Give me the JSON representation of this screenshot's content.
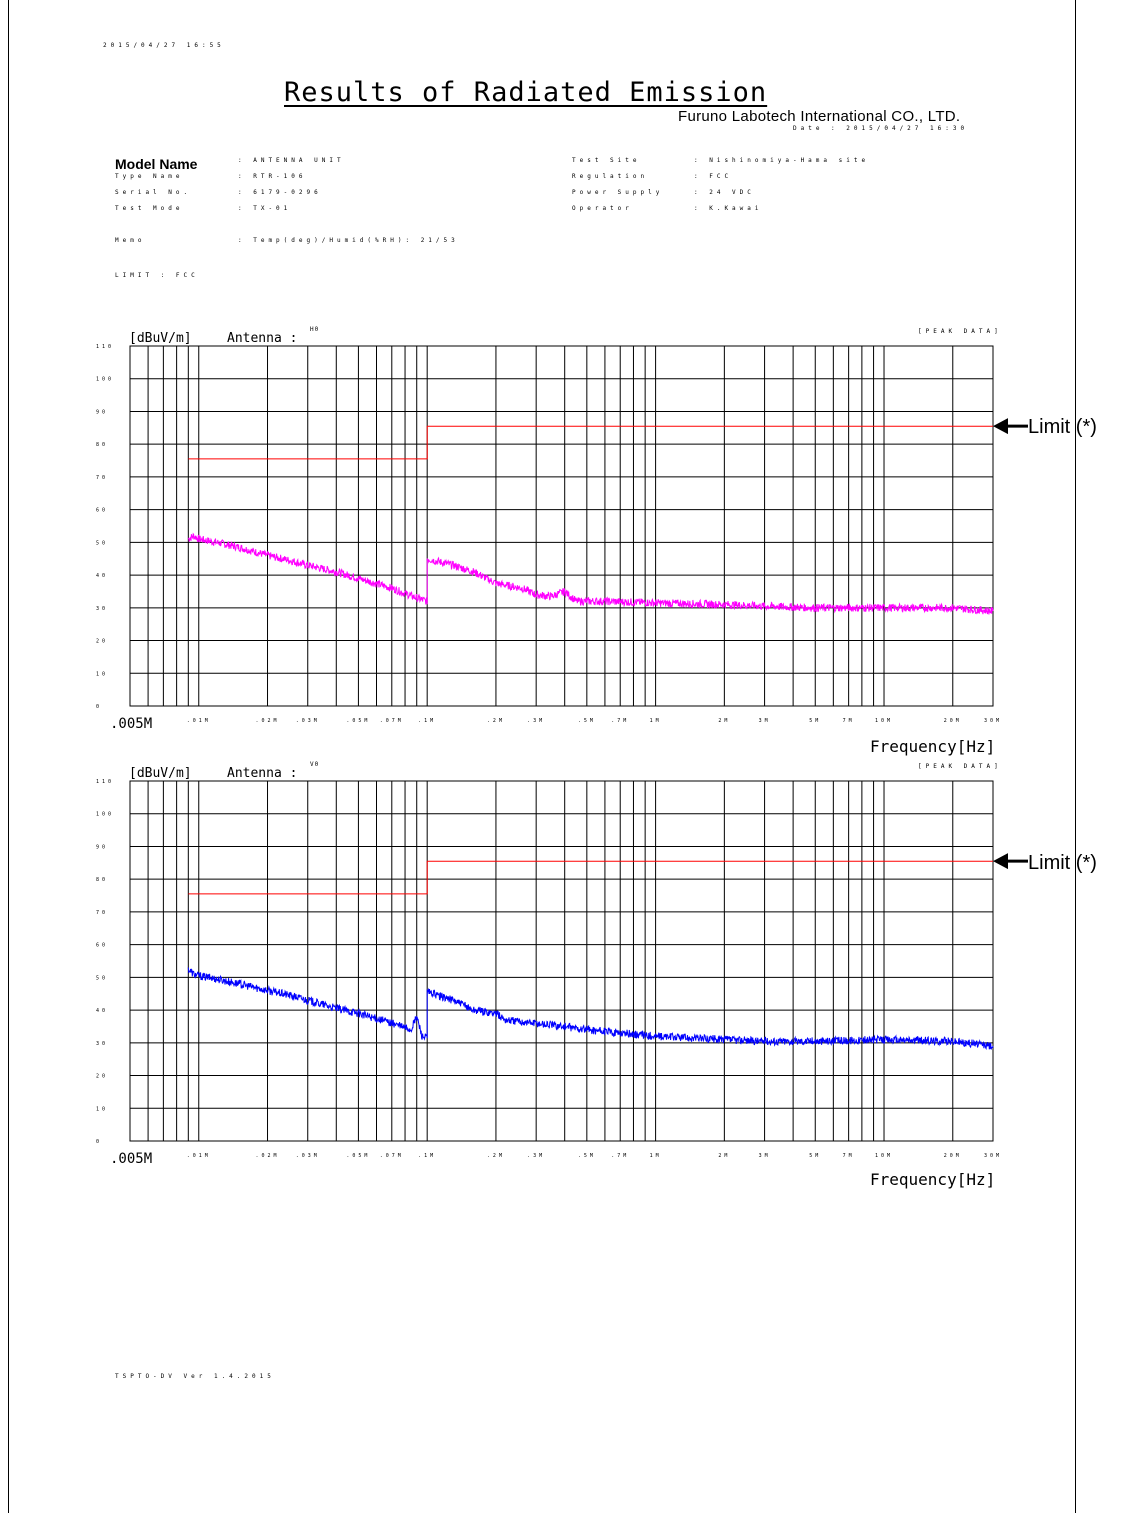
{
  "header": {
    "print_timestamp": "2015/04/27 16:55",
    "title": "Results of Radiated Emission",
    "company": "Furuno Labotech International CO., LTD.",
    "date_line": "Date : 2015/04/27 16:30"
  },
  "info_left": {
    "model_name_label": "Model Name",
    "model_name_value": ": ANTENNA UNIT",
    "type_name_label": "Type Name",
    "type_name_value": ": RTR-106",
    "serial_label": "Serial No.",
    "serial_value": ": 6179-0296",
    "test_mode_label": "Test Mode",
    "test_mode_value": ": TX-01"
  },
  "info_right": {
    "test_site_label": "Test Site",
    "test_site_value": ": Nishinomiya-Hama site",
    "regulation_label": "Regulation",
    "regulation_value": ": FCC",
    "power_supply_label": "Power Supply",
    "power_supply_value": ": 24 VDC",
    "operator_label": "Operator",
    "operator_value": ": K.Kawai"
  },
  "memo": {
    "label": "Memo",
    "value": ": Temp(deg)/Humid(%RH): 21/53"
  },
  "limit_line": "LIMIT : FCC",
  "footer": "TSPTO-DV Ver 1.4.2015",
  "chart_data": [
    {
      "type": "line",
      "ylabel": "[dBuV/m]",
      "antenna_label": "Antenna :",
      "antenna_value": "H0",
      "peak_label": "[PEAK DATA]",
      "xlabel": "Frequency[Hz]",
      "x_start_label": ".005M",
      "x_scale": "log",
      "xlim_hz": [
        5000,
        30000000
      ],
      "ylim": [
        0,
        110
      ],
      "yticks": [
        0,
        10,
        20,
        30,
        40,
        50,
        60,
        70,
        80,
        90,
        100,
        110
      ],
      "ytick_labels": [
        "0",
        "10",
        "20",
        "30",
        "40",
        "50",
        "60",
        "70",
        "80",
        "90",
        "100",
        "110"
      ],
      "xtick_labels": [
        ".01M",
        ".02M",
        ".03M",
        ".05M",
        ".07M",
        ".1M",
        ".2M",
        ".3M",
        ".5M",
        ".7M",
        "1M",
        "2M",
        "3M",
        "5M",
        "7M",
        "10M",
        "20M",
        "30M"
      ],
      "xtick_hz": [
        10000,
        20000,
        30000,
        50000,
        70000,
        100000,
        200000,
        300000,
        500000,
        700000,
        1000000,
        2000000,
        3000000,
        5000000,
        7000000,
        10000000,
        20000000,
        30000000
      ],
      "annotation": "Limit (*)",
      "series": [
        {
          "color": "#ff00ff",
          "points": [
            [
              9000,
              51
            ],
            [
              9500,
              52
            ],
            [
              10000,
              51
            ],
            [
              12000,
              50
            ],
            [
              15000,
              48.5
            ],
            [
              20000,
              46
            ],
            [
              25000,
              44.5
            ],
            [
              30000,
              43
            ],
            [
              40000,
              41
            ],
            [
              50000,
              39
            ],
            [
              70000,
              36
            ],
            [
              90000,
              33
            ],
            [
              100000,
              32
            ],
            [
              100001,
              45
            ],
            [
              130000,
              43
            ],
            [
              160000,
              41
            ],
            [
              200000,
              37.5
            ],
            [
              260000,
              36
            ],
            [
              300000,
              34
            ],
            [
              350000,
              33.5
            ],
            [
              400000,
              35
            ],
            [
              450000,
              32
            ],
            [
              600000,
              32
            ],
            [
              1000000,
              31.5
            ],
            [
              2000000,
              31
            ],
            [
              3000000,
              30.5
            ],
            [
              5000000,
              30
            ],
            [
              10000000,
              30
            ],
            [
              20000000,
              30
            ],
            [
              30000000,
              29
            ]
          ],
          "noise_dB": 1.2
        },
        {
          "color": "#ff0000",
          "points": [
            [
              9000,
              75.5
            ],
            [
              100000,
              75.5
            ],
            [
              100000,
              85.5
            ],
            [
              30000000,
              85.5
            ]
          ],
          "noise_dB": 0
        }
      ]
    },
    {
      "type": "line",
      "ylabel": "[dBuV/m]",
      "antenna_label": "Antenna :",
      "antenna_value": "V0",
      "peak_label": "[PEAK DATA]",
      "xlabel": "Frequency[Hz]",
      "x_start_label": ".005M",
      "x_scale": "log",
      "xlim_hz": [
        5000,
        30000000
      ],
      "ylim": [
        0,
        110
      ],
      "yticks": [
        0,
        10,
        20,
        30,
        40,
        50,
        60,
        70,
        80,
        90,
        100,
        110
      ],
      "ytick_labels": [
        "0",
        "10",
        "20",
        "30",
        "40",
        "50",
        "60",
        "70",
        "80",
        "90",
        "100",
        "110"
      ],
      "xtick_labels": [
        ".01M",
        ".02M",
        ".03M",
        ".05M",
        ".07M",
        ".1M",
        ".2M",
        ".3M",
        ".5M",
        ".7M",
        "1M",
        "2M",
        "3M",
        "5M",
        "7M",
        "10M",
        "20M",
        "30M"
      ],
      "xtick_hz": [
        10000,
        20000,
        30000,
        50000,
        70000,
        100000,
        200000,
        300000,
        500000,
        700000,
        1000000,
        2000000,
        3000000,
        5000000,
        7000000,
        10000000,
        20000000,
        30000000
      ],
      "annotation": "Limit (*)",
      "series": [
        {
          "color": "#0000ff",
          "points": [
            [
              9000,
              52.5
            ],
            [
              9500,
              51
            ],
            [
              10000,
              50.5
            ],
            [
              12000,
              49.5
            ],
            [
              15000,
              48
            ],
            [
              20000,
              46
            ],
            [
              25000,
              44.5
            ],
            [
              30000,
              43
            ],
            [
              40000,
              40.5
            ],
            [
              50000,
              39
            ],
            [
              70000,
              36
            ],
            [
              85000,
              34
            ],
            [
              90000,
              38
            ],
            [
              95000,
              32
            ],
            [
              100000,
              31.5
            ],
            [
              100001,
              45.5
            ],
            [
              130000,
              43
            ],
            [
              160000,
              40
            ],
            [
              200000,
              39
            ],
            [
              220000,
              37
            ],
            [
              300000,
              36
            ],
            [
              400000,
              35
            ],
            [
              500000,
              34
            ],
            [
              700000,
              33
            ],
            [
              1000000,
              32
            ],
            [
              2000000,
              31
            ],
            [
              3000000,
              30.5
            ],
            [
              5000000,
              30.5
            ],
            [
              10000000,
              31
            ],
            [
              20000000,
              30.5
            ],
            [
              30000000,
              29
            ]
          ],
          "noise_dB": 1.2
        },
        {
          "color": "#ff0000",
          "points": [
            [
              9000,
              75.5
            ],
            [
              100000,
              75.5
            ],
            [
              100000,
              85.5
            ],
            [
              30000000,
              85.5
            ]
          ],
          "noise_dB": 0
        }
      ]
    }
  ]
}
